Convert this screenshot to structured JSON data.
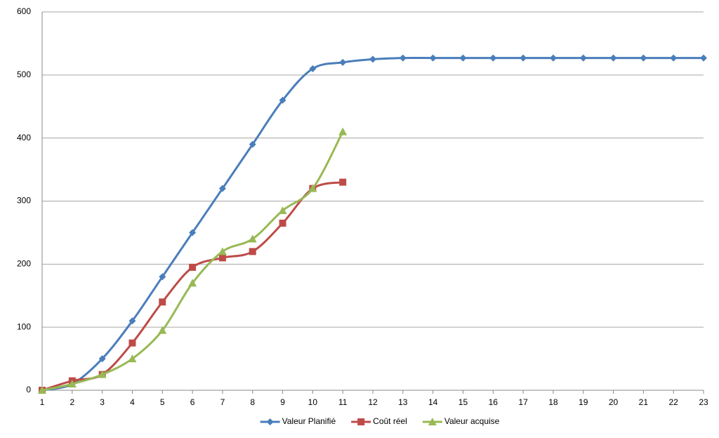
{
  "chart_data": {
    "type": "line",
    "categories": [
      "1",
      "2",
      "3",
      "4",
      "5",
      "6",
      "7",
      "8",
      "9",
      "10",
      "11",
      "12",
      "13",
      "14",
      "15",
      "16",
      "17",
      "18",
      "19",
      "20",
      "21",
      "22",
      "23"
    ],
    "series": [
      {
        "name": "Valeur Planifié",
        "color": "#4a7ebb",
        "marker": "diamond",
        "values": [
          0,
          10,
          50,
          110,
          180,
          250,
          320,
          390,
          460,
          510,
          520,
          525,
          527,
          527,
          527,
          527,
          527,
          527,
          527,
          527,
          527,
          527,
          527
        ]
      },
      {
        "name": "Coût réel",
        "color": "#be4b48",
        "marker": "square",
        "values": [
          0,
          15,
          25,
          75,
          140,
          195,
          210,
          220,
          265,
          320,
          330,
          null,
          null,
          null,
          null,
          null,
          null,
          null,
          null,
          null,
          null,
          null,
          null
        ]
      },
      {
        "name": "Valeur acquise",
        "color": "#98b954",
        "marker": "triangle",
        "values": [
          0,
          10,
          25,
          50,
          95,
          170,
          220,
          240,
          285,
          320,
          410,
          null,
          null,
          null,
          null,
          null,
          null,
          null,
          null,
          null,
          null,
          null,
          null
        ]
      }
    ],
    "ylim": [
      0,
      600
    ],
    "yticks": [
      0,
      100,
      200,
      300,
      400,
      500,
      600
    ],
    "grid": true,
    "smooth": true,
    "legend": "bottom"
  }
}
